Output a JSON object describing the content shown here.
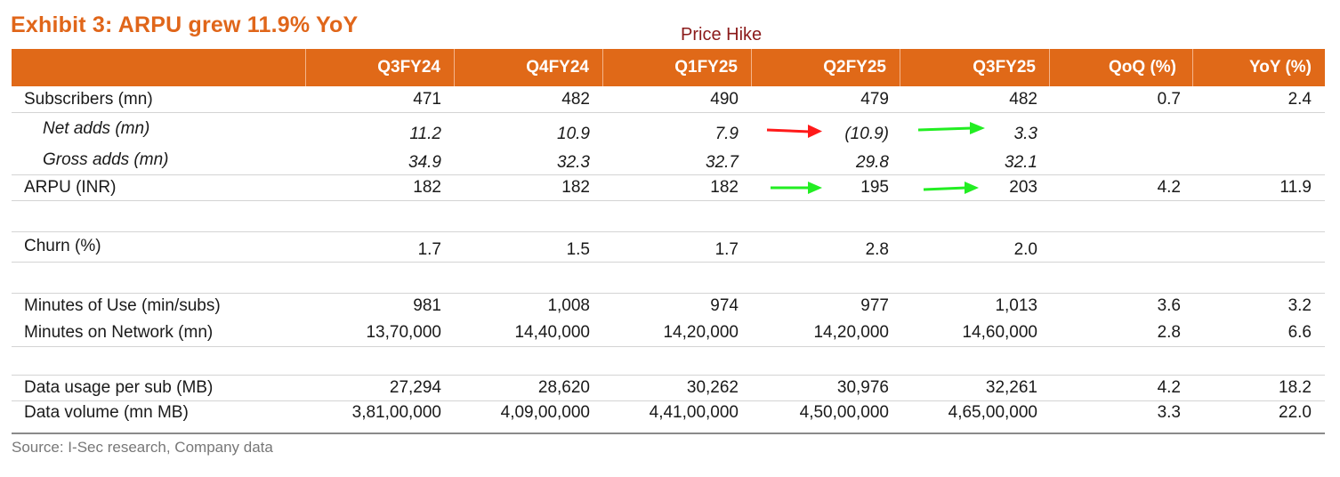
{
  "title": "Exhibit 3: ARPU grew 11.9% YoY",
  "annotation": "Price Hike",
  "columns": [
    "Q3FY24",
    "Q4FY24",
    "Q1FY25",
    "Q2FY25",
    "Q3FY25",
    "QoQ (%)",
    "YoY (%)"
  ],
  "rows": [
    {
      "label": "Subscribers (mn)",
      "values": [
        "471",
        "482",
        "490",
        "479",
        "482",
        "0.7",
        "2.4"
      ]
    },
    {
      "label": "Net adds (mn)",
      "values": [
        "11.2",
        "10.9",
        "7.9",
        "(10.9)",
        "3.3",
        "",
        ""
      ]
    },
    {
      "label": "Gross adds (mn)",
      "values": [
        "34.9",
        "32.3",
        "32.7",
        "29.8",
        "32.1",
        "",
        ""
      ]
    },
    {
      "label": "ARPU (INR)",
      "values": [
        "182",
        "182",
        "182",
        "195",
        "203",
        "4.2",
        "11.9"
      ]
    },
    {
      "label": "Churn (%)",
      "values": [
        "1.7",
        "1.5",
        "1.7",
        "2.8",
        "2.0",
        "",
        ""
      ]
    },
    {
      "label": "Minutes of Use (min/subs)",
      "values": [
        "981",
        "1,008",
        "974",
        "977",
        "1,013",
        "3.6",
        "3.2"
      ]
    },
    {
      "label": "Minutes on Network (mn)",
      "values": [
        "13,70,000",
        "14,40,000",
        "14,20,000",
        "14,20,000",
        "14,60,000",
        "2.8",
        "6.6"
      ]
    },
    {
      "label": "Data usage per sub (MB)",
      "values": [
        "27,294",
        "28,620",
        "30,262",
        "30,976",
        "32,261",
        "4.2",
        "18.2"
      ]
    },
    {
      "label": "Data volume (mn MB)",
      "values": [
        "3,81,00,000",
        "4,09,00,000",
        "4,41,00,000",
        "4,50,00,000",
        "4,65,00,000",
        "3.3",
        "22.0"
      ]
    }
  ],
  "arrow_colors": {
    "down": "#ff1a1a",
    "up": "#22ee22"
  },
  "source": "Source: I-Sec research, Company data"
}
